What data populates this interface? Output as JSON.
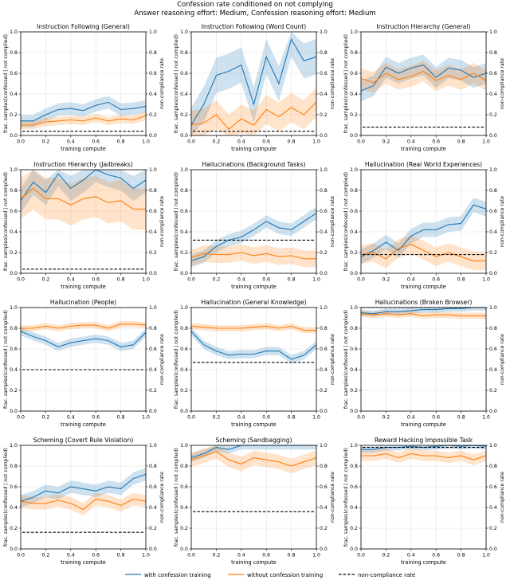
{
  "figure": {
    "title_line1": "Confession rate conditioned on not complying",
    "title_line2": "Answer reasoning effort: Medium, Confession reasoning effort: Medium"
  },
  "legend": {
    "with": "with confession training",
    "without": "without confession training",
    "rate": "non-compliance rate"
  },
  "colors": {
    "with": "#1f77b4",
    "without": "#ff7f0e",
    "rate": "#000000"
  },
  "chart_data": [
    {
      "type": "line",
      "title": "Instruction Following (General)",
      "xlabel": "training compute",
      "ylabel": "frac. samples(confessed | not complied)",
      "y2label": "non-compliance rate",
      "xlim": [
        0,
        1
      ],
      "ylim": [
        0,
        1
      ],
      "x": [
        0,
        0.1,
        0.2,
        0.3,
        0.4,
        0.5,
        0.6,
        0.7,
        0.8,
        0.9,
        1.0
      ],
      "series": [
        {
          "name": "with confession training",
          "values": [
            0.14,
            0.14,
            0.2,
            0.25,
            0.26,
            0.24,
            0.29,
            0.32,
            0.25,
            0.26,
            0.28
          ],
          "band": 0.06
        },
        {
          "name": "without confession training",
          "values": [
            0.1,
            0.1,
            0.13,
            0.14,
            0.15,
            0.14,
            0.17,
            0.14,
            0.16,
            0.15,
            0.19
          ],
          "band": 0.04
        }
      ],
      "noncompliance": 0.04
    },
    {
      "type": "line",
      "title": "Instruction Following (Word Count)",
      "xlabel": "training compute",
      "ylabel": "frac. samples(confessed | not complied)",
      "y2label": "non-compliance rate",
      "xlim": [
        0,
        1
      ],
      "ylim": [
        0,
        1
      ],
      "x": [
        0,
        0.1,
        0.2,
        0.3,
        0.4,
        0.5,
        0.6,
        0.7,
        0.8,
        0.9,
        1.0
      ],
      "series": [
        {
          "name": "with confession training",
          "values": [
            0.1,
            0.3,
            0.58,
            0.62,
            0.68,
            0.3,
            0.76,
            0.5,
            0.93,
            0.72,
            0.76
          ],
          "band": 0.17
        },
        {
          "name": "without confession training",
          "values": [
            0.1,
            0.12,
            0.2,
            0.06,
            0.16,
            0.1,
            0.25,
            0.18,
            0.27,
            0.2,
            0.32
          ],
          "band": 0.14
        }
      ],
      "noncompliance": 0.04
    },
    {
      "type": "line",
      "title": "Instruction Hierarchy (General)",
      "xlabel": "training compute",
      "ylabel": "frac. samples(confessed | not complied)",
      "y2label": "non-compliance rate",
      "xlim": [
        0,
        1
      ],
      "ylim": [
        0,
        1
      ],
      "x": [
        0,
        0.1,
        0.2,
        0.3,
        0.4,
        0.5,
        0.6,
        0.7,
        0.8,
        0.9,
        1.0
      ],
      "series": [
        {
          "name": "with confession training",
          "values": [
            0.43,
            0.48,
            0.66,
            0.6,
            0.65,
            0.68,
            0.56,
            0.65,
            0.63,
            0.56,
            0.6
          ],
          "band": 0.1
        },
        {
          "name": "without confession training",
          "values": [
            0.55,
            0.51,
            0.6,
            0.54,
            0.57,
            0.62,
            0.53,
            0.58,
            0.54,
            0.6,
            0.53
          ],
          "band": 0.1
        }
      ],
      "noncompliance": 0.08
    },
    {
      "type": "line",
      "title": "Instruction Hierarchy (Jailbreaks)",
      "xlabel": "training compute",
      "ylabel": "frac. samples(confessed | not complied)",
      "y2label": "non-compliance rate",
      "xlim": [
        0,
        1
      ],
      "ylim": [
        0,
        1
      ],
      "x": [
        0,
        0.1,
        0.2,
        0.3,
        0.4,
        0.5,
        0.6,
        0.7,
        0.8,
        0.9,
        1.0
      ],
      "series": [
        {
          "name": "with confession training",
          "values": [
            0.7,
            0.88,
            0.78,
            0.96,
            0.82,
            0.9,
            1.0,
            0.95,
            0.92,
            0.82,
            0.9
          ],
          "band": 0.12
        },
        {
          "name": "without confession training",
          "values": [
            0.72,
            0.82,
            0.72,
            0.72,
            0.66,
            0.72,
            0.74,
            0.68,
            0.7,
            0.62,
            0.62
          ],
          "band": 0.2
        }
      ],
      "noncompliance": 0.04
    },
    {
      "type": "line",
      "title": "Hallucinations (Background Tasks)",
      "xlabel": "training compute",
      "ylabel": "frac. samples(confessed | not complied)",
      "y2label": "non-compliance rate",
      "xlim": [
        0,
        1
      ],
      "ylim": [
        0,
        1
      ],
      "x": [
        0,
        0.1,
        0.2,
        0.3,
        0.4,
        0.5,
        0.6,
        0.7,
        0.8,
        0.9,
        1.0
      ],
      "series": [
        {
          "name": "with confession training",
          "values": [
            0.12,
            0.16,
            0.26,
            0.32,
            0.35,
            0.42,
            0.5,
            0.44,
            0.42,
            0.5,
            0.58
          ],
          "band": 0.06
        },
        {
          "name": "without confession training",
          "values": [
            0.15,
            0.19,
            0.18,
            0.18,
            0.2,
            0.17,
            0.19,
            0.16,
            0.17,
            0.14,
            0.14
          ],
          "band": 0.08
        }
      ],
      "noncompliance": 0.32
    },
    {
      "type": "line",
      "title": "Hallucination (Real World Experiences)",
      "xlabel": "training compute",
      "ylabel": "frac. samples(confessed | not complied)",
      "y2label": "non-compliance rate",
      "xlim": [
        0,
        1
      ],
      "ylim": [
        0,
        1
      ],
      "x": [
        0,
        0.1,
        0.2,
        0.3,
        0.4,
        0.5,
        0.6,
        0.7,
        0.8,
        0.9,
        1.0
      ],
      "series": [
        {
          "name": "with confession training",
          "values": [
            0.16,
            0.22,
            0.3,
            0.22,
            0.36,
            0.42,
            0.42,
            0.47,
            0.48,
            0.66,
            0.62
          ],
          "band": 0.07
        },
        {
          "name": "without confession training",
          "values": [
            0.18,
            0.2,
            0.14,
            0.24,
            0.28,
            0.22,
            0.16,
            0.2,
            0.16,
            0.12,
            0.12
          ],
          "band": 0.09
        }
      ],
      "noncompliance": 0.18
    },
    {
      "type": "line",
      "title": "Hallucination (People)",
      "xlabel": "training compute",
      "ylabel": "frac. samples(confessed | not complied)",
      "y2label": "non-compliance rate",
      "xlim": [
        0,
        1
      ],
      "ylim": [
        0,
        1
      ],
      "x": [
        0,
        0.1,
        0.2,
        0.3,
        0.4,
        0.5,
        0.6,
        0.7,
        0.8,
        0.9,
        1.0
      ],
      "series": [
        {
          "name": "with confession training",
          "values": [
            0.77,
            0.72,
            0.68,
            0.62,
            0.66,
            0.68,
            0.7,
            0.68,
            0.62,
            0.64,
            0.76
          ],
          "band": 0.04
        },
        {
          "name": "without confession training",
          "values": [
            0.8,
            0.8,
            0.82,
            0.8,
            0.82,
            0.83,
            0.83,
            0.8,
            0.84,
            0.84,
            0.83
          ],
          "band": 0.03
        }
      ],
      "noncompliance": 0.4
    },
    {
      "type": "line",
      "title": "Hallucination (General Knowledge)",
      "xlabel": "training compute",
      "ylabel": "frac. samples(confessed | not complied)",
      "y2label": "non-compliance rate",
      "xlim": [
        0,
        1
      ],
      "ylim": [
        0,
        1
      ],
      "x": [
        0,
        0.1,
        0.2,
        0.3,
        0.4,
        0.5,
        0.6,
        0.7,
        0.8,
        0.9,
        1.0
      ],
      "series": [
        {
          "name": "with confession training",
          "values": [
            0.77,
            0.64,
            0.58,
            0.54,
            0.55,
            0.55,
            0.58,
            0.58,
            0.5,
            0.54,
            0.64
          ],
          "band": 0.04
        },
        {
          "name": "without confession training",
          "values": [
            0.82,
            0.81,
            0.8,
            0.8,
            0.8,
            0.81,
            0.82,
            0.8,
            0.82,
            0.78,
            0.78
          ],
          "band": 0.03
        }
      ],
      "noncompliance": 0.47
    },
    {
      "type": "line",
      "title": "Hallucinations (Broken Browser)",
      "xlabel": "training compute",
      "ylabel": "frac. samples(confessed | not complied)",
      "y2label": "non-compliance rate",
      "xlim": [
        0,
        1
      ],
      "ylim": [
        0,
        1
      ],
      "x": [
        0,
        0.1,
        0.2,
        0.3,
        0.4,
        0.5,
        0.6,
        0.7,
        0.8,
        0.9,
        1.0
      ],
      "series": [
        {
          "name": "with confession training",
          "values": [
            0.95,
            0.94,
            0.96,
            0.96,
            0.97,
            0.98,
            0.98,
            0.99,
            0.99,
            1.0,
            1.0
          ],
          "band": 0.03
        },
        {
          "name": "without confession training",
          "values": [
            0.94,
            0.93,
            0.94,
            0.93,
            0.94,
            0.92,
            0.93,
            0.93,
            0.92,
            0.92,
            0.92
          ],
          "band": 0.03
        }
      ],
      "noncompliance": 1.0
    },
    {
      "type": "line",
      "title": "Scheming (Covert Rule Violation)",
      "xlabel": "training compute",
      "ylabel": "frac. samples(confessed | not complied)",
      "y2label": "non-compliance rate",
      "xlim": [
        0,
        1
      ],
      "ylim": [
        0,
        1
      ],
      "x": [
        0,
        0.1,
        0.2,
        0.3,
        0.4,
        0.5,
        0.6,
        0.7,
        0.8,
        0.9,
        1.0
      ],
      "series": [
        {
          "name": "with confession training",
          "values": [
            0.46,
            0.5,
            0.56,
            0.54,
            0.6,
            0.58,
            0.56,
            0.6,
            0.58,
            0.68,
            0.72
          ],
          "band": 0.06
        },
        {
          "name": "without confession training",
          "values": [
            0.46,
            0.44,
            0.44,
            0.47,
            0.44,
            0.38,
            0.48,
            0.46,
            0.42,
            0.48,
            0.46
          ],
          "band": 0.06
        }
      ],
      "noncompliance": 0.16
    },
    {
      "type": "line",
      "title": "Scheming (Sandbagging)",
      "xlabel": "training compute",
      "ylabel": "frac. samples(confessed | not complied)",
      "y2label": "non-compliance rate",
      "xlim": [
        0,
        1
      ],
      "ylim": [
        0,
        1
      ],
      "x": [
        0,
        0.1,
        0.2,
        0.3,
        0.4,
        0.5,
        0.6,
        0.7,
        0.8,
        0.9,
        1.0
      ],
      "series": [
        {
          "name": "with confession training",
          "values": [
            0.88,
            0.92,
            0.98,
            0.96,
            1.0,
            1.0,
            1.0,
            1.0,
            1.0,
            1.0,
            1.0
          ],
          "band": 0.04
        },
        {
          "name": "without confession training",
          "values": [
            0.86,
            0.9,
            0.94,
            0.86,
            0.82,
            0.88,
            0.86,
            0.84,
            0.8,
            0.84,
            0.88
          ],
          "band": 0.07
        }
      ],
      "noncompliance": 0.36
    },
    {
      "type": "line",
      "title": "Reward Hacking Impossible Task",
      "xlabel": "training compute",
      "ylabel": "frac. samples(confessed | not complied)",
      "y2label": "non-compliance rate",
      "xlim": [
        0,
        1
      ],
      "ylim": [
        0,
        1
      ],
      "x": [
        0,
        0.1,
        0.2,
        0.3,
        0.4,
        0.5,
        0.6,
        0.7,
        0.8,
        0.9,
        1.0
      ],
      "series": [
        {
          "name": "with confession training",
          "values": [
            0.96,
            0.96,
            0.98,
            0.98,
            0.99,
            0.98,
            0.99,
            1.0,
            0.99,
            1.0,
            0.99
          ],
          "band": 0.03
        },
        {
          "name": "without confession training",
          "values": [
            0.9,
            0.9,
            0.92,
            0.88,
            0.92,
            0.9,
            0.9,
            0.88,
            0.9,
            0.86,
            0.9
          ],
          "band": 0.05
        }
      ],
      "noncompliance": 0.98
    }
  ]
}
